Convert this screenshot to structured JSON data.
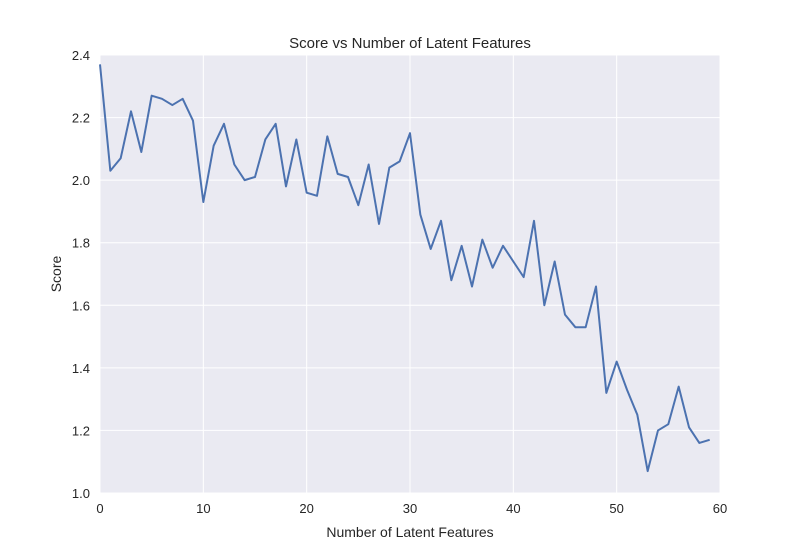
{
  "chart_data": {
    "type": "line",
    "title": "Score vs Number of Latent Features",
    "xlabel": "Number of Latent Features",
    "ylabel": "Score",
    "xlim": [
      0,
      60
    ],
    "ylim": [
      1.0,
      2.4
    ],
    "xticks": [
      0,
      10,
      20,
      30,
      40,
      50,
      60
    ],
    "xtick_labels": [
      "0",
      "10",
      "20",
      "30",
      "40",
      "50",
      "60"
    ],
    "yticks": [
      1.0,
      1.2,
      1.4,
      1.6,
      1.8,
      2.0,
      2.2,
      2.4
    ],
    "ytick_labels": [
      "1.0",
      "1.2",
      "1.4",
      "1.6",
      "1.8",
      "2.0",
      "2.2",
      "2.4"
    ],
    "grid": true,
    "colors": {
      "plot_background": "#EAEAF2",
      "grid": "#FFFFFF",
      "line": "#4C72B0"
    },
    "series": [
      {
        "x": [
          0,
          1,
          2,
          3,
          4,
          5,
          6,
          7,
          8,
          9,
          10,
          11,
          12,
          13,
          14,
          15,
          16,
          17,
          18,
          19,
          20,
          21,
          22,
          23,
          24,
          25,
          26,
          27,
          28,
          29,
          30,
          31,
          32,
          33,
          34,
          35,
          36,
          37,
          38,
          39,
          40,
          41,
          42,
          43,
          44,
          45,
          46,
          47,
          48,
          49,
          50,
          51,
          52,
          53,
          54,
          55,
          56,
          57,
          58,
          59
        ],
        "values": [
          2.37,
          2.03,
          2.07,
          2.22,
          2.09,
          2.27,
          2.26,
          2.24,
          2.26,
          2.19,
          1.93,
          2.11,
          2.18,
          2.05,
          2.0,
          2.01,
          2.13,
          2.18,
          1.98,
          2.13,
          1.96,
          1.95,
          2.14,
          2.02,
          2.01,
          1.92,
          2.05,
          1.86,
          2.04,
          2.06,
          2.15,
          1.89,
          1.78,
          1.87,
          1.68,
          1.79,
          1.66,
          1.81,
          1.72,
          1.79,
          1.74,
          1.69,
          1.87,
          1.6,
          1.74,
          1.57,
          1.53,
          1.53,
          1.66,
          1.32,
          1.42,
          1.33,
          1.25,
          1.07,
          1.2,
          1.22,
          1.34,
          1.21,
          1.16,
          1.17
        ]
      }
    ]
  }
}
